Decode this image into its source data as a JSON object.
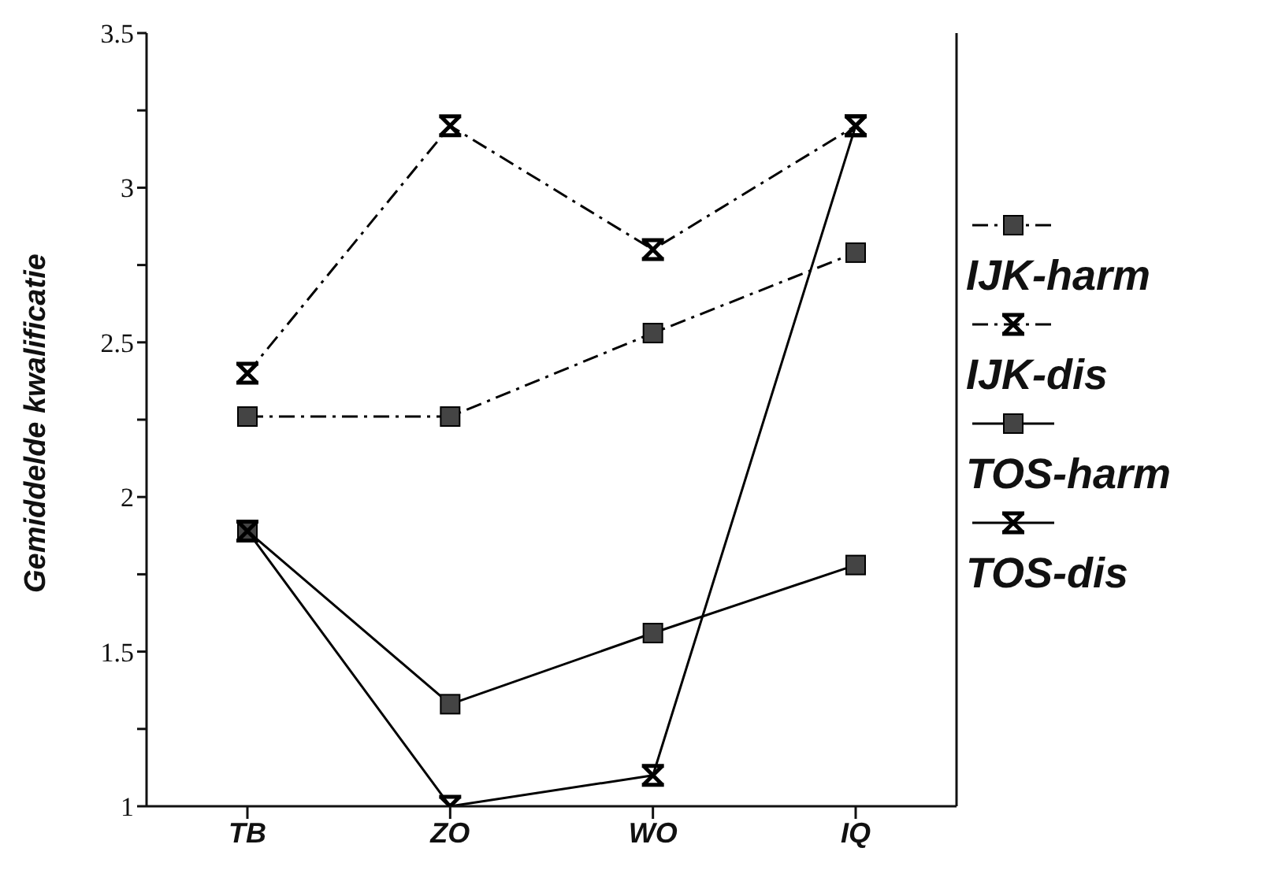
{
  "chart_data": {
    "type": "line",
    "ylabel": "Gemiddelde kwalificatie",
    "categories": [
      "TB",
      "ZO",
      "WO",
      "IQ"
    ],
    "ylim": [
      1,
      3.5
    ],
    "yticks": [
      1,
      {
        "value": 1.25,
        "label": null
      },
      1.5,
      {
        "value": 1.75,
        "label": null
      },
      2,
      {
        "value": 2.25,
        "label": null
      },
      2.5,
      {
        "value": 2.75,
        "label": null
      },
      3,
      {
        "value": 3.25,
        "label": null
      },
      3.5
    ],
    "grid": false,
    "legend": "right",
    "series": [
      {
        "name": "IJK-harm",
        "color": "#000000",
        "marker": "square",
        "line_style": "dashed",
        "values": [
          2.26,
          2.26,
          2.53,
          2.79
        ]
      },
      {
        "name": "IJK-dis",
        "color": "#000000",
        "marker": "cross",
        "line_style": "dashed",
        "values": [
          2.4,
          3.2,
          2.8,
          3.2
        ]
      },
      {
        "name": "TOS-harm",
        "color": "#000000",
        "marker": "square",
        "line_style": "solid",
        "values": [
          1.89,
          1.33,
          1.56,
          1.78
        ]
      },
      {
        "name": "TOS-dis",
        "color": "#000000",
        "marker": "cross",
        "line_style": "solid",
        "values": [
          1.89,
          1.0,
          1.1,
          3.2
        ]
      }
    ]
  }
}
